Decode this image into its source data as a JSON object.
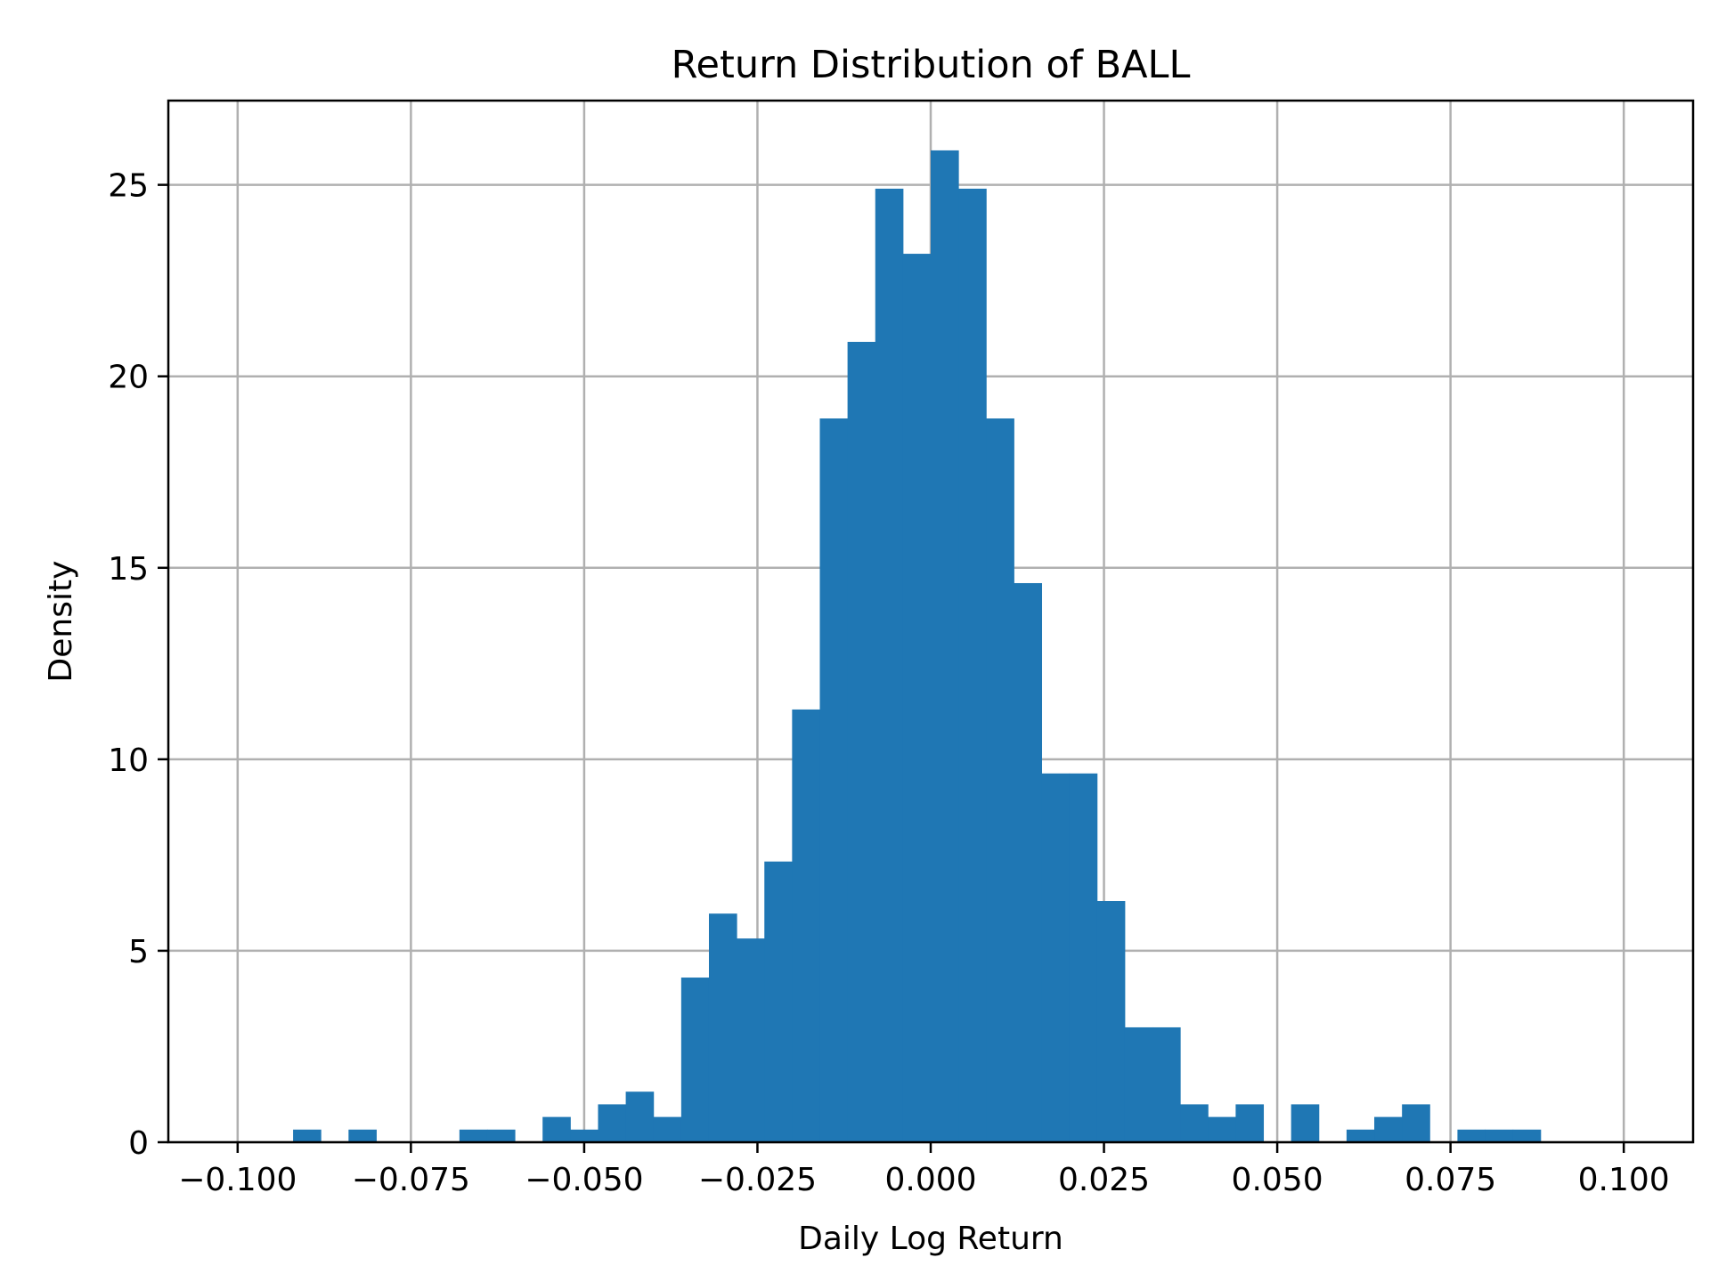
{
  "chart_data": {
    "type": "bar",
    "subtype": "histogram",
    "title": "Return Distribution of BALL",
    "xlabel": "Daily Log Return",
    "ylabel": "Density",
    "xlim": [
      -0.11,
      0.11
    ],
    "ylim": [
      0,
      27.2
    ],
    "grid": true,
    "legend": null,
    "bar_color": "#1f77b4",
    "bin_width": 0.004,
    "bin_start": -0.092,
    "bin_edges": [
      -0.092,
      -0.088,
      -0.084,
      -0.08,
      -0.076,
      -0.072,
      -0.068,
      -0.064,
      -0.06,
      -0.056,
      -0.052,
      -0.048,
      -0.044,
      -0.04,
      -0.036,
      -0.032,
      -0.028,
      -0.024,
      -0.02,
      -0.016,
      -0.012,
      -0.008,
      -0.004,
      0.0,
      0.004,
      0.008,
      0.012,
      0.016,
      0.02,
      0.024,
      0.028,
      0.032,
      0.036,
      0.04,
      0.044,
      0.048,
      0.052,
      0.056,
      0.06,
      0.064,
      0.068,
      0.072,
      0.076,
      0.08,
      0.084,
      0.088
    ],
    "values": [
      0.33,
      0,
      0.33,
      0,
      0,
      0,
      0.33,
      0.33,
      0,
      0.66,
      0.33,
      0.99,
      1.32,
      0.66,
      4.3,
      5.97,
      5.32,
      7.33,
      11.3,
      18.9,
      20.9,
      24.9,
      23.2,
      25.9,
      24.9,
      18.9,
      14.6,
      9.63,
      9.63,
      6.3,
      3.0,
      3.0,
      0.99,
      0.66,
      0.99,
      0,
      0.99,
      0,
      0.33,
      0.66,
      0.99,
      0,
      0.33,
      0.33,
      0.33
    ],
    "xticks": [
      -0.1,
      -0.075,
      -0.05,
      -0.025,
      0.0,
      0.025,
      0.05,
      0.075,
      0.1
    ],
    "xtick_labels": [
      "−0.100",
      "−0.075",
      "−0.050",
      "−0.025",
      "0.000",
      "0.025",
      "0.050",
      "0.075",
      "0.100"
    ],
    "yticks": [
      0,
      5,
      10,
      15,
      20,
      25
    ],
    "ytick_labels": [
      "0",
      "5",
      "10",
      "15",
      "20",
      "25"
    ]
  }
}
